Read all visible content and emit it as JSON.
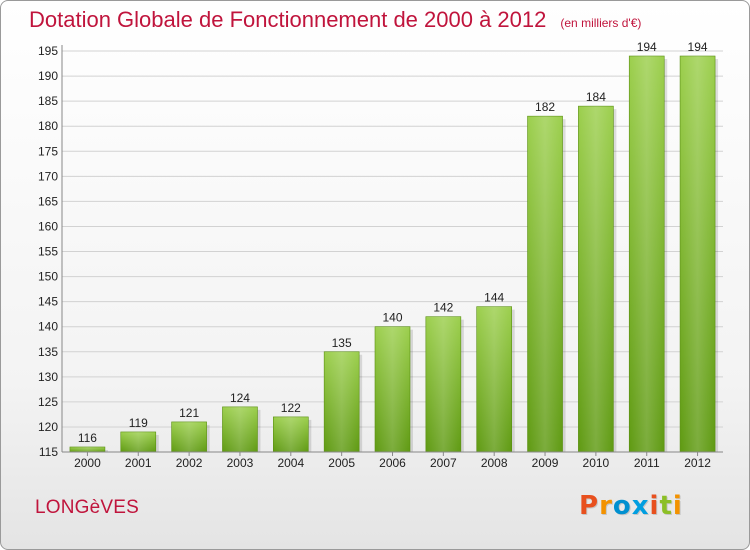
{
  "header": {
    "title": "Dotation Globale de Fonctionnement de 2000 à 2012",
    "subtitle": "(en milliers d'€)"
  },
  "footer": {
    "commune": "LONGèVES",
    "brand": "Proxiti",
    "brand_letters": [
      {
        "char": "P",
        "color": "#e8501e"
      },
      {
        "char": "r",
        "color": "#f39200"
      },
      {
        "char": "o",
        "color": "#0090d0"
      },
      {
        "char": "x",
        "color": "#009ee0"
      },
      {
        "char": "i",
        "color": "#e8501e"
      },
      {
        "char": "t",
        "color": "#8cbf26"
      },
      {
        "char": "i",
        "color": "#f39200"
      }
    ]
  },
  "chart_data": {
    "type": "bar",
    "title": "Dotation Globale de Fonctionnement de 2000 à 2012",
    "subtitle": "(en milliers d'€)",
    "xlabel": "",
    "ylabel": "",
    "categories": [
      "2000",
      "2001",
      "2002",
      "2003",
      "2004",
      "2005",
      "2006",
      "2007",
      "2008",
      "2009",
      "2010",
      "2011",
      "2012"
    ],
    "values": [
      116,
      119,
      121,
      124,
      122,
      135,
      140,
      142,
      144,
      182,
      184,
      194,
      194
    ],
    "ylim": [
      115,
      195
    ],
    "yticks": [
      115,
      120,
      125,
      130,
      135,
      140,
      145,
      150,
      155,
      160,
      165,
      170,
      175,
      180,
      185,
      190,
      195
    ],
    "grid": true,
    "bar_color": "#7dbb2a",
    "legend": "none"
  }
}
